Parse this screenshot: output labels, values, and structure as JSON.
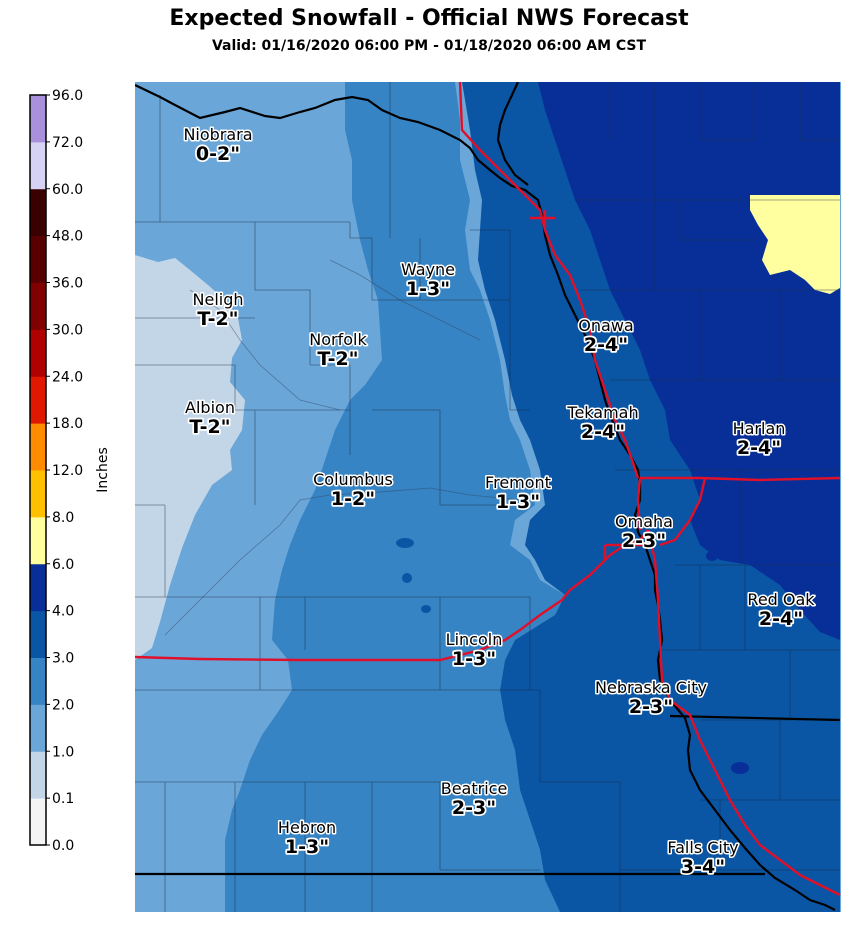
{
  "header": {
    "title": "Expected Snowfall - Official NWS Forecast",
    "subtitle": "Valid: 01/16/2020 06:00 PM - 01/18/2020 06:00 AM CST"
  },
  "colorbar": {
    "label": "Inches",
    "bins": [
      {
        "tick": "0.0",
        "color": "#f4f4f4"
      },
      {
        "tick": "0.1",
        "color": "#c3d6e8"
      },
      {
        "tick": "1.0",
        "color": "#6aa6d8"
      },
      {
        "tick": "2.0",
        "color": "#3784c4"
      },
      {
        "tick": "3.0",
        "color": "#0a55a4"
      },
      {
        "tick": "4.0",
        "color": "#082f98"
      },
      {
        "tick": "6.0",
        "color": "#ffffa0"
      },
      {
        "tick": "8.0",
        "color": "#ffc000"
      },
      {
        "tick": "12.0",
        "color": "#ff8c00"
      },
      {
        "tick": "18.0",
        "color": "#e01800"
      },
      {
        "tick": "24.0",
        "color": "#b00000"
      },
      {
        "tick": "30.0",
        "color": "#800000"
      },
      {
        "tick": "36.0",
        "color": "#580000"
      },
      {
        "tick": "48.0",
        "color": "#3a0000"
      },
      {
        "tick": "60.0",
        "color": "#d6d2f4"
      },
      {
        "tick": "72.0",
        "color": "#a890dc"
      },
      {
        "tick": "96.0",
        "color": "#7e54b4"
      }
    ]
  },
  "map": {
    "colors": {
      "trace": "#c3d6e8",
      "one_two": "#6aa6d8",
      "two_three": "#3784c4",
      "three_four": "#0a55a4",
      "four_six": "#082f98",
      "six_eight": "#ffffa0",
      "interstate": "#e0102a",
      "border": "#000000"
    },
    "cities": [
      {
        "name": "Niobrara",
        "amount": "0-2\""
      },
      {
        "name": "Wayne",
        "amount": "1-3\""
      },
      {
        "name": "Neligh",
        "amount": "T-2\""
      },
      {
        "name": "Norfolk",
        "amount": "T-2\""
      },
      {
        "name": "Onawa",
        "amount": "2-4\""
      },
      {
        "name": "Albion",
        "amount": "T-2\""
      },
      {
        "name": "Tekamah",
        "amount": "2-4\""
      },
      {
        "name": "Harlan",
        "amount": "2-4\""
      },
      {
        "name": "Columbus",
        "amount": "1-2\""
      },
      {
        "name": "Fremont",
        "amount": "1-3\""
      },
      {
        "name": "Omaha",
        "amount": "2-3\""
      },
      {
        "name": "Red Oak",
        "amount": "2-4\""
      },
      {
        "name": "Lincoln",
        "amount": "1-3\""
      },
      {
        "name": "Nebraska City",
        "amount": "2-3\""
      },
      {
        "name": "Beatrice",
        "amount": "2-3\""
      },
      {
        "name": "Hebron",
        "amount": "1-3\""
      },
      {
        "name": "Falls City",
        "amount": "3-4\""
      }
    ]
  }
}
